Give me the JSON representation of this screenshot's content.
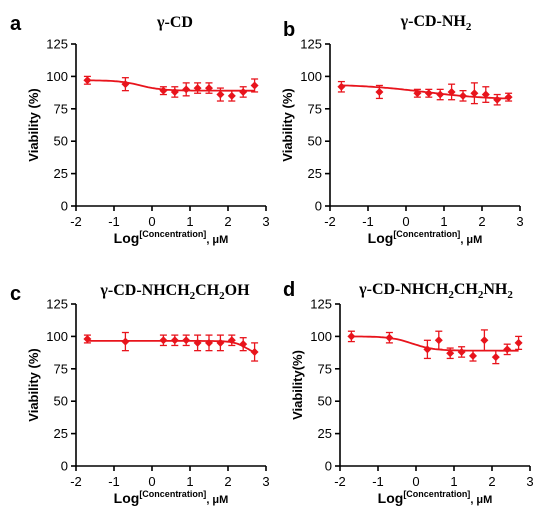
{
  "chart_data": [
    {
      "type": "scatter",
      "panel_label": "a",
      "title_parts": [
        {
          "t": "γ-CD",
          "sub": false
        }
      ],
      "ylabel": "Viability (%)",
      "xlabel_parts": {
        "main": "Log",
        "sup": "[Concentration]",
        "tail": ", μM"
      },
      "xlim": [
        -2,
        3
      ],
      "ylim": [
        0,
        125
      ],
      "xticks": [
        -2,
        -1,
        0,
        1,
        2,
        3
      ],
      "yticks": [
        0,
        25,
        50,
        75,
        100,
        125
      ],
      "color": "#e8141c",
      "x": [
        -1.7,
        -0.7,
        0.3,
        0.6,
        0.9,
        1.2,
        1.5,
        1.8,
        2.1,
        2.4,
        2.7
      ],
      "y": [
        97,
        94,
        89,
        88,
        90,
        91,
        91,
        86,
        85,
        88,
        93
      ],
      "err": [
        3,
        5,
        3,
        4,
        5,
        4,
        4,
        5,
        4,
        4,
        5
      ],
      "fit": {
        "top": 97,
        "bottom": 89,
        "logIC50": -0.3,
        "hill": 1.5
      }
    },
    {
      "type": "scatter",
      "panel_label": "b",
      "title_parts": [
        {
          "t": "γ-CD-NH",
          "sub": false
        },
        {
          "t": "2",
          "sub": true
        }
      ],
      "ylabel": "Viability (%)",
      "xlabel_parts": {
        "main": "Log",
        "sup": "[Concentration]",
        "tail": ", μM"
      },
      "xlim": [
        -2,
        3
      ],
      "ylim": [
        0,
        125
      ],
      "xticks": [
        -2,
        -1,
        0,
        1,
        2,
        3
      ],
      "yticks": [
        0,
        25,
        50,
        75,
        100,
        125
      ],
      "color": "#e8141c",
      "x": [
        -1.7,
        -0.7,
        0.3,
        0.6,
        0.9,
        1.2,
        1.5,
        1.8,
        2.1,
        2.4,
        2.7
      ],
      "y": [
        92,
        88,
        87,
        87,
        86,
        88,
        85,
        87,
        86,
        82,
        84
      ],
      "err": [
        4,
        5,
        3,
        3,
        4,
        6,
        4,
        8,
        6,
        4,
        3
      ],
      "fit": {
        "top": 94,
        "bottom": 82,
        "logIC50": 0.5,
        "hill": 0.5
      }
    },
    {
      "type": "scatter",
      "panel_label": "c",
      "title_parts": [
        {
          "t": "γ-CD-NHCH",
          "sub": false
        },
        {
          "t": "2",
          "sub": true
        },
        {
          "t": "CH",
          "sub": false
        },
        {
          "t": "2",
          "sub": true
        },
        {
          "t": "OH",
          "sub": false
        }
      ],
      "ylabel": "Viability (%)",
      "xlabel_parts": {
        "main": "Log",
        "sup": "[Concentration]",
        "tail": ", μM"
      },
      "xlim": [
        -2,
        3
      ],
      "ylim": [
        0,
        125
      ],
      "xticks": [
        -2,
        -1,
        0,
        1,
        2,
        3
      ],
      "yticks": [
        0,
        25,
        50,
        75,
        100,
        125
      ],
      "color": "#e8141c",
      "x": [
        -1.7,
        -0.7,
        0.3,
        0.6,
        0.9,
        1.2,
        1.5,
        1.8,
        2.1,
        2.4,
        2.7
      ],
      "y": [
        98,
        96,
        97,
        97,
        97,
        95,
        95,
        95,
        97,
        94,
        88
      ],
      "err": [
        3,
        7,
        4,
        4,
        4,
        6,
        6,
        6,
        4,
        5,
        7
      ],
      "fit": {
        "top": 96.5,
        "bottom": 85,
        "logIC50": 2.5,
        "hill": 2.5
      }
    },
    {
      "type": "scatter",
      "panel_label": "d",
      "title_parts": [
        {
          "t": "γ-CD-NHCH",
          "sub": false
        },
        {
          "t": "2",
          "sub": true
        },
        {
          "t": "CH",
          "sub": false
        },
        {
          "t": "2",
          "sub": true
        },
        {
          "t": "NH",
          "sub": false
        },
        {
          "t": "2",
          "sub": true
        }
      ],
      "ylabel": "Viability(%)",
      "xlabel_parts": {
        "main": "Log",
        "sup": "[Concentration]",
        "tail": ", μM"
      },
      "xlim": [
        -2,
        3
      ],
      "ylim": [
        0,
        125
      ],
      "xticks": [
        -2,
        -1,
        0,
        1,
        2,
        3
      ],
      "yticks": [
        0,
        25,
        50,
        75,
        100,
        125
      ],
      "color": "#e8141c",
      "x": [
        -1.7,
        -0.7,
        0.3,
        0.6,
        0.9,
        1.2,
        1.5,
        1.8,
        2.1,
        2.4,
        2.7
      ],
      "y": [
        100,
        99,
        90,
        97,
        87,
        88,
        85,
        97,
        84,
        90,
        95
      ],
      "err": [
        4,
        4,
        7,
        7,
        4,
        4,
        4,
        8,
        5,
        4,
        5
      ],
      "fit": {
        "top": 100,
        "bottom": 89,
        "logIC50": -0.1,
        "hill": 1.5
      }
    }
  ]
}
